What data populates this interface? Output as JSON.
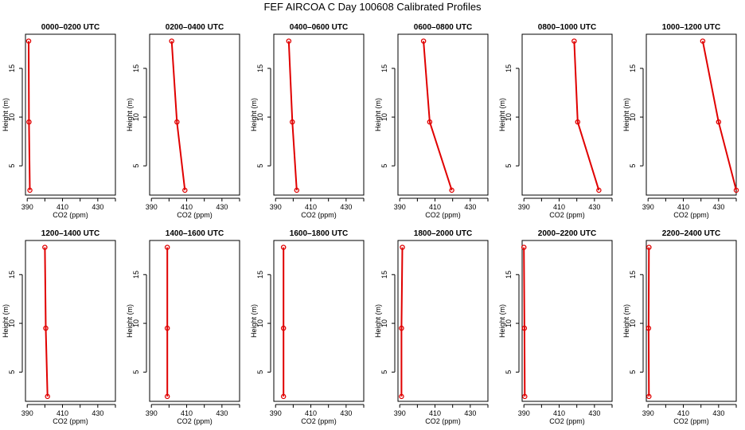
{
  "chart_data": {
    "type": "line",
    "title": "FEF AIRCOA C  Day 100608  Calibrated Profiles",
    "series_color": "#e00000",
    "xlabel": "CO2 (ppm)",
    "ylabel": "Height (m)",
    "xlim": [
      389,
      440
    ],
    "ylim": [
      2,
      18.5
    ],
    "xticks": [
      390,
      400,
      410,
      420,
      430,
      440
    ],
    "xtick_labels": [
      "390",
      "",
      "410",
      "",
      "430",
      ""
    ],
    "yticks": [
      5,
      10,
      15
    ],
    "ytick_labels": [
      "5",
      "10",
      "15"
    ],
    "panels": [
      {
        "title": "0000–0200 UTC",
        "heights": [
          2.5,
          9.5,
          17.8
        ],
        "co2": [
          391.5,
          391.0,
          390.8
        ]
      },
      {
        "title": "0200–0400 UTC",
        "heights": [
          2.5,
          9.5,
          17.8
        ],
        "co2": [
          409.0,
          404.5,
          401.5
        ]
      },
      {
        "title": "0400–0600 UTC",
        "heights": [
          2.5,
          9.5,
          17.8
        ],
        "co2": [
          402.0,
          399.5,
          397.5
        ]
      },
      {
        "title": "0600–0800 UTC",
        "heights": [
          2.5,
          9.5,
          17.8
        ],
        "co2": [
          419.5,
          407.0,
          403.5
        ]
      },
      {
        "title": "0800–1000 UTC",
        "heights": [
          2.5,
          9.5,
          17.8
        ],
        "co2": [
          432.5,
          420.5,
          418.5
        ]
      },
      {
        "title": "1000–1200 UTC",
        "heights": [
          2.5,
          9.5,
          17.8
        ],
        "co2": [
          440.0,
          430.0,
          421.0
        ]
      },
      {
        "title": "1200–1400 UTC",
        "heights": [
          2.5,
          9.5,
          17.8
        ],
        "co2": [
          401.5,
          400.5,
          400.0
        ]
      },
      {
        "title": "1400–1600 UTC",
        "heights": [
          2.5,
          9.5,
          17.8
        ],
        "co2": [
          399.0,
          399.0,
          399.0
        ]
      },
      {
        "title": "1600–1800 UTC",
        "heights": [
          2.5,
          9.5,
          17.8
        ],
        "co2": [
          394.5,
          394.5,
          394.5
        ]
      },
      {
        "title": "1800–2000 UTC",
        "heights": [
          2.5,
          9.5,
          17.8
        ],
        "co2": [
          391.0,
          391.0,
          391.5
        ]
      },
      {
        "title": "2000–2200 UTC",
        "heights": [
          2.5,
          9.5,
          17.8
        ],
        "co2": [
          390.5,
          390.3,
          390.0
        ]
      },
      {
        "title": "2200–2400 UTC",
        "heights": [
          2.5,
          9.5,
          17.8
        ],
        "co2": [
          390.5,
          390.3,
          390.5
        ]
      }
    ]
  }
}
